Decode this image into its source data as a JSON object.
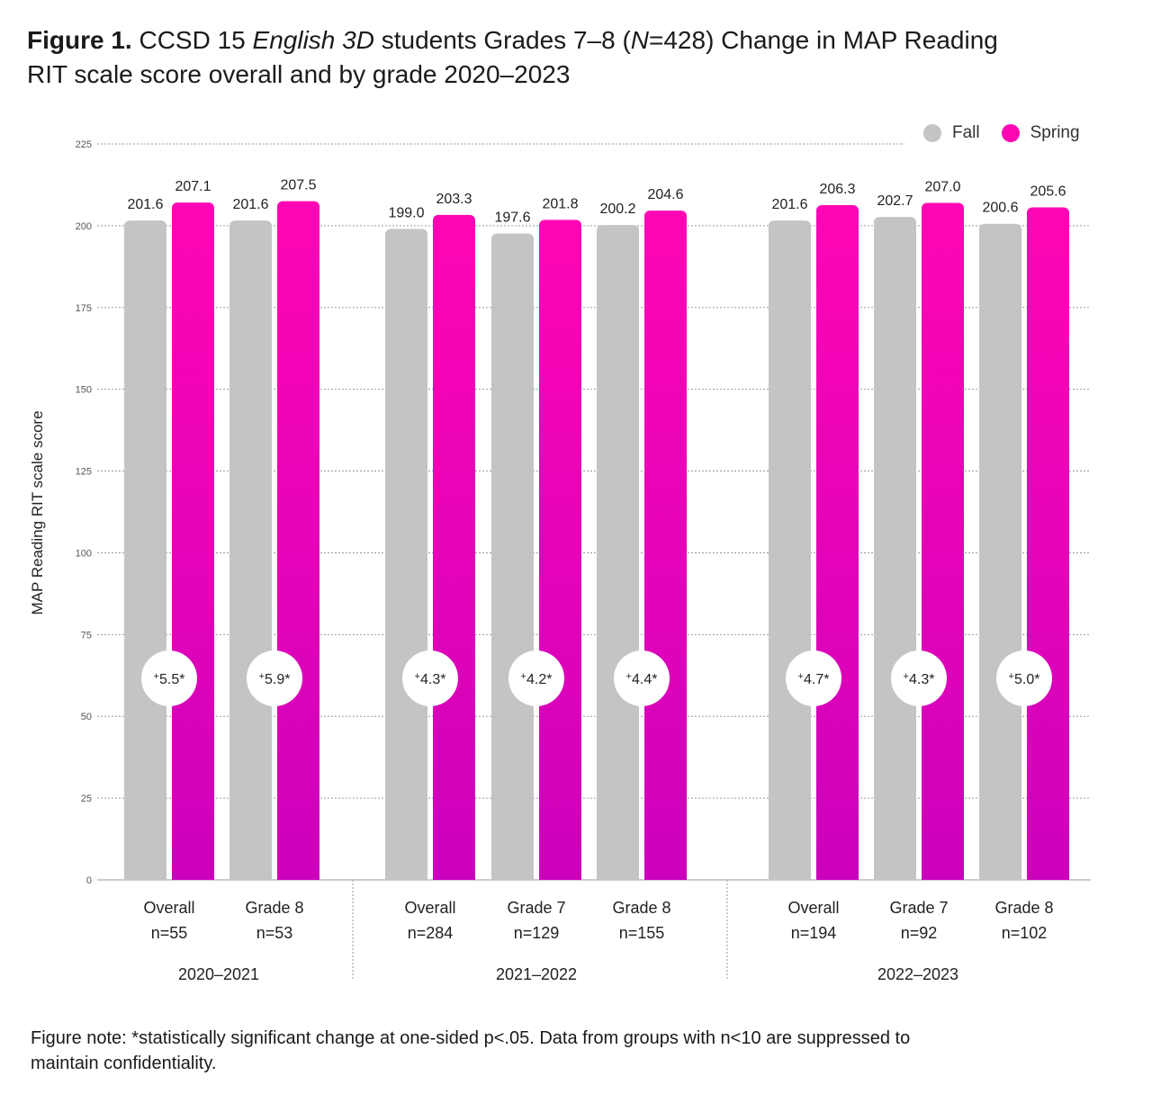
{
  "title": {
    "bold": "Figure 1.",
    "part1": " CCSD 15 ",
    "italic1": "English 3D",
    "part2": " students Grades 7–8 (",
    "italic2": "N",
    "part3": "=428) Change in MAP Reading RIT scale score overall and by grade 2020–2023"
  },
  "note": "Figure note: *statistically significant change at one-sided p<.05. Data from groups with n<10 are suppressed to maintain confidentiality.",
  "colors": {
    "fall": "#c4c4c4",
    "spring_top": "#ff06b5",
    "spring_bottom": "#cc00bb"
  },
  "chart_data": {
    "type": "bar",
    "title": "CCSD 15 English 3D students Grades 7–8 (N=428) Change in MAP Reading RIT scale score overall and by grade 2020–2023",
    "ylabel": "MAP Reading RIT scale score",
    "ylim": [
      0,
      225
    ],
    "yticks": [
      0,
      25,
      50,
      75,
      100,
      125,
      150,
      175,
      200,
      225
    ],
    "legend": [
      "Fall",
      "Spring"
    ],
    "legend_position": "top-right",
    "groups": [
      {
        "year": "2020–2021",
        "categories": [
          {
            "label": "Overall",
            "n": "n=55",
            "fall": 201.6,
            "spring": 207.1,
            "fall_label": "201.6",
            "spring_label": "207.1",
            "change": "5.5*"
          },
          {
            "label": "Grade 8",
            "n": "n=53",
            "fall": 201.6,
            "spring": 207.5,
            "fall_label": "201.6",
            "spring_label": "207.5",
            "change": "5.9*"
          }
        ]
      },
      {
        "year": "2021–2022",
        "categories": [
          {
            "label": "Overall",
            "n": "n=284",
            "fall": 199.0,
            "spring": 203.3,
            "fall_label": "199.0",
            "spring_label": "203.3",
            "change": "4.3*"
          },
          {
            "label": "Grade 7",
            "n": "n=129",
            "fall": 197.6,
            "spring": 201.8,
            "fall_label": "197.6",
            "spring_label": "201.8",
            "change": "4.2*"
          },
          {
            "label": "Grade 8",
            "n": "n=155",
            "fall": 200.2,
            "spring": 204.6,
            "fall_label": "200.2",
            "spring_label": "204.6",
            "change": "4.4*"
          }
        ]
      },
      {
        "year": "2022–2023",
        "categories": [
          {
            "label": "Overall",
            "n": "n=194",
            "fall": 201.6,
            "spring": 206.3,
            "fall_label": "201.6",
            "spring_label": "206.3",
            "change": "4.7*"
          },
          {
            "label": "Grade 7",
            "n": "n=92",
            "fall": 202.7,
            "spring": 207.0,
            "fall_label": "202.7",
            "spring_label": "207.0",
            "change": "4.3*"
          },
          {
            "label": "Grade 8",
            "n": "n=102",
            "fall": 200.6,
            "spring": 205.6,
            "fall_label": "200.6",
            "spring_label": "205.6",
            "change": "5.0*"
          }
        ]
      }
    ]
  }
}
